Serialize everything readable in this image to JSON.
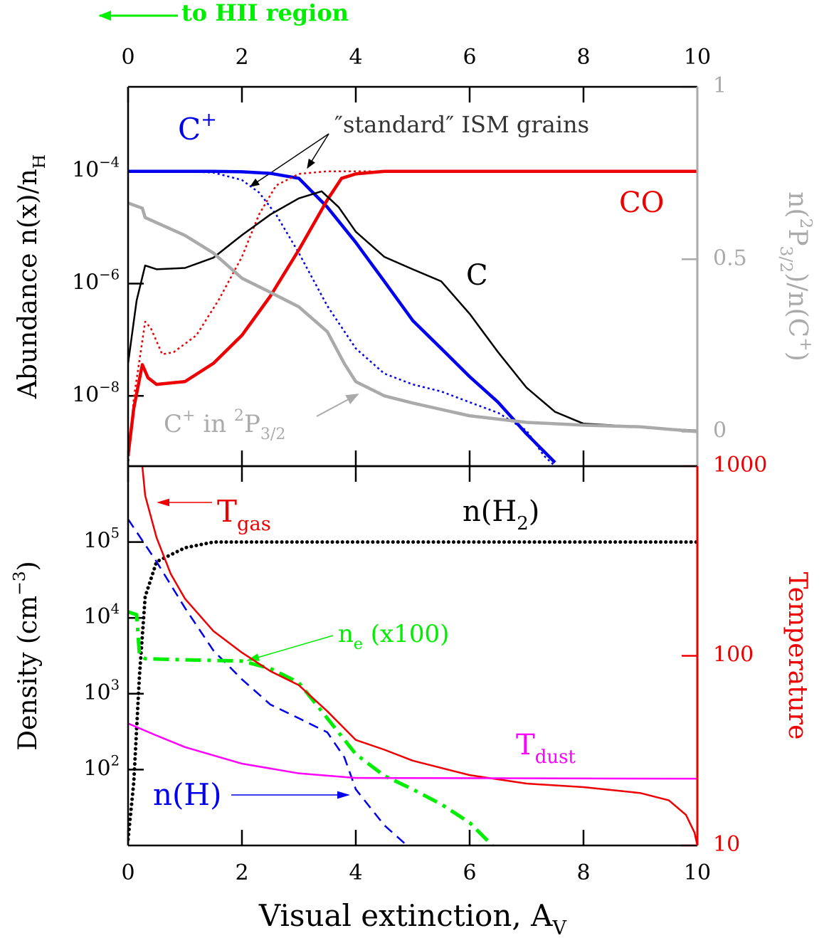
{
  "chart_data": [
    {
      "type": "line",
      "ylog": true,
      "xlim": [
        0,
        10
      ],
      "xticks": [
        0,
        2,
        4,
        6,
        8,
        10
      ],
      "ylim": [
        5.6e-10,
        0.0032
      ],
      "yticks": [
        {
          "value": 0.0001,
          "label": [
            {
              "text": "10"
            },
            {
              "text": "−4",
              "script": "sup"
            }
          ]
        },
        {
          "value": 1e-06,
          "label": [
            {
              "text": "10"
            },
            {
              "text": "−6",
              "script": "sup"
            }
          ]
        },
        {
          "value": 1e-08,
          "label": [
            {
              "text": "10"
            },
            {
              "text": "−8",
              "script": "sup"
            }
          ]
        }
      ],
      "y2lim": [
        -0.1,
        1
      ],
      "y2ticks": [
        0,
        0.5,
        1
      ],
      "y2color": "#aaaaaa",
      "ylabel": [
        {
          "text": "Abundance n(x)/n"
        },
        {
          "text": "H",
          "script": "sub"
        }
      ],
      "y2label": [
        {
          "text": "n("
        },
        {
          "text": "2",
          "script": "sup"
        },
        {
          "text": "P"
        },
        {
          "text": "3/2",
          "script": "sub"
        },
        {
          "text": ")/n(C"
        },
        {
          "text": "+",
          "script": "sup"
        },
        {
          "text": ")"
        }
      ],
      "series": [
        {
          "name": [
            {
              "text": "C"
            },
            {
              "text": "+",
              "script": "sup"
            }
          ],
          "color": "#0000ee",
          "style": "solid",
          "width": 4.5,
          "x": [
            0,
            0.5,
            1,
            1.5,
            2,
            2.5,
            3,
            3.5,
            4,
            4.5,
            5,
            5.5,
            6,
            6.5,
            7,
            7.5
          ],
          "values": [
            0.0001,
            0.0001,
            0.0001,
            0.0001,
            9.8e-05,
            9.2e-05,
            7.5e-05,
            2.3e-05,
            5.4e-06,
            1.1e-06,
            2.2e-07,
            7e-08,
            2.2e-08,
            7.7e-09,
            2.1e-09,
            6.5e-10
          ]
        },
        {
          "color": "#0000ee",
          "style": "dotted",
          "width": 2.5,
          "x": [
            0,
            0.5,
            1,
            1.5,
            2,
            2.3,
            2.6,
            3,
            3.5,
            4,
            4.5,
            5,
            5.5,
            6,
            6.5,
            7,
            7.3,
            7.5
          ],
          "values": [
            0.0001,
            0.0001,
            0.0001,
            9.5e-05,
            7e-05,
            4.2e-05,
            1.7e-05,
            3.5e-06,
            4e-07,
            7e-08,
            2.5e-08,
            1.6e-08,
            1.2e-08,
            7.7e-09,
            5e-09,
            2.4e-09,
            8.7e-10,
            5.6e-10
          ]
        },
        {
          "name": [
            {
              "text": "CO"
            }
          ],
          "color": "#ee0000",
          "style": "solid",
          "width": 4.5,
          "x": [
            0,
            0.1,
            0.25,
            0.35,
            0.5,
            1,
            1.5,
            2,
            2.5,
            3,
            3.5,
            3.75,
            4,
            4.5,
            10
          ],
          "values": [
            8.7e-10,
            6e-09,
            3.6e-08,
            2.1e-08,
            1.6e-08,
            1.8e-08,
            3.8e-08,
            1.2e-07,
            6e-07,
            4e-06,
            3.1e-05,
            7.5e-05,
            9e-05,
            0.0001,
            0.0001
          ]
        },
        {
          "color": "#ee0000",
          "style": "dotted",
          "width": 2.5,
          "x": [
            0,
            0.1,
            0.3,
            0.4,
            0.6,
            0.8,
            1.2,
            1.6,
            2,
            2.3,
            2.6,
            3,
            3.5,
            4.3
          ],
          "values": [
            5.6e-10,
            9e-09,
            2.1e-07,
            1.6e-07,
            5.5e-08,
            6e-08,
            1.2e-07,
            5.3e-07,
            3e-06,
            1.7e-05,
            5.6e-05,
            9e-05,
            0.0001,
            0.0001
          ]
        },
        {
          "name": [
            {
              "text": "C"
            }
          ],
          "color": "#000000",
          "style": "solid",
          "width": 2.5,
          "x": [
            0,
            0.15,
            0.3,
            0.5,
            1,
            1.5,
            2,
            2.5,
            3,
            3.4,
            3.7,
            4,
            4.5,
            5,
            5.5,
            6,
            6.5,
            7,
            7.5,
            8,
            9,
            10
          ],
          "values": [
            3.8e-08,
            5e-07,
            2.1e-06,
            1.8e-06,
            1.9e-06,
            2.9e-06,
            7.3e-06,
            1.7e-05,
            3.3e-05,
            4.4e-05,
            2.3e-05,
            8.4e-06,
            3e-06,
            1.8e-06,
            1.1e-06,
            2.9e-07,
            6e-08,
            1.4e-08,
            5.2e-09,
            3.2e-09,
            2.8e-09,
            2.4e-09
          ]
        },
        {
          "name": [
            {
              "text": "C"
            },
            {
              "text": "+",
              "script": "sup"
            },
            {
              "text": " in "
            },
            {
              "text": "2",
              "script": "sup"
            },
            {
              "text": "P"
            },
            {
              "text": "3/2",
              "script": "sub"
            }
          ],
          "color": "#aaaaaa",
          "style": "solid",
          "width": 4.5,
          "axis": "y2",
          "x": [
            0,
            0.25,
            0.3,
            1,
            1.5,
            2,
            2.5,
            3,
            3.5,
            3.8,
            4,
            4.5,
            5,
            6,
            7,
            8,
            9,
            10
          ],
          "values": [
            0.663,
            0.648,
            0.621,
            0.569,
            0.518,
            0.445,
            0.404,
            0.362,
            0.29,
            0.197,
            0.145,
            0.104,
            0.083,
            0.046,
            0.027,
            0.019,
            0.014,
            0
          ]
        }
      ],
      "annotations": [
        {
          "text": [
            {
              "text": "″standard″ ISM grains"
            }
          ],
          "color": "#333333"
        },
        {
          "text": [
            {
              "text": "to HII region"
            }
          ],
          "color": "#00ee00"
        }
      ]
    },
    {
      "type": "line",
      "ylog": true,
      "y2log": true,
      "xlim": [
        0,
        10
      ],
      "xticks": [
        0,
        2,
        4,
        6,
        8,
        10
      ],
      "ylim": [
        10,
        1000000
      ],
      "yticks": [
        {
          "value": 100,
          "label": [
            {
              "text": "10"
            },
            {
              "text": "2",
              "script": "sup"
            }
          ]
        },
        {
          "value": 1000,
          "label": [
            {
              "text": "10"
            },
            {
              "text": "3",
              "script": "sup"
            }
          ]
        },
        {
          "value": 10000,
          "label": [
            {
              "text": "10"
            },
            {
              "text": "4",
              "script": "sup"
            }
          ]
        },
        {
          "value": 100000,
          "label": [
            {
              "text": "10"
            },
            {
              "text": "5",
              "script": "sup"
            }
          ]
        }
      ],
      "y2lim": [
        10,
        1000
      ],
      "y2ticks": [
        10,
        100,
        1000
      ],
      "y2color": "#ee0000",
      "ylabel": [
        {
          "text": "Density (cm"
        },
        {
          "text": "−3",
          "script": "sup"
        },
        {
          "text": ")"
        }
      ],
      "y2label": [
        {
          "text": "Temperature"
        }
      ],
      "xlabel": [
        {
          "text": "Visual extinction, A"
        },
        {
          "text": "V",
          "script": "sub"
        }
      ],
      "series": [
        {
          "name": [
            {
              "text": "n(H"
            },
            {
              "text": "2",
              "script": "sub"
            },
            {
              "text": ")"
            }
          ],
          "color": "#000000",
          "style": "dots",
          "width": 5,
          "x": [
            0,
            0.1,
            0.2,
            0.3,
            0.5,
            1,
            1.5,
            10
          ],
          "values": [
            12,
            68,
            1740,
            19000,
            55000,
            84000,
            100000,
            100000
          ]
        },
        {
          "name": [
            {
              "text": "n(H)"
            }
          ],
          "color": "#0000ee",
          "style": "dashed",
          "width": 2.5,
          "x": [
            0,
            0.5,
            1,
            1.5,
            2,
            2.5,
            3,
            3.5,
            3.8,
            4,
            4.5,
            4.9
          ],
          "values": [
            200000,
            55000,
            13500,
            3700,
            1550,
            720,
            475,
            310,
            145,
            55,
            18.5,
            10
          ]
        },
        {
          "name": [
            {
              "text": "n"
            },
            {
              "text": "e",
              "script": "sub"
            },
            {
              "text": " (x100)"
            }
          ],
          "color": "#00ee00",
          "style": "dashdot",
          "width": 5,
          "x": [
            0,
            0.15,
            0.2,
            0.3,
            1,
            2,
            2.5,
            3,
            3.5,
            4,
            4.5,
            5,
            5.5,
            6,
            6.4
          ],
          "values": [
            12000,
            11000,
            3300,
            2900,
            2800,
            2700,
            2150,
            1400,
            475,
            160,
            83,
            55,
            35,
            20,
            10
          ]
        },
        {
          "name": [
            {
              "text": "T"
            },
            {
              "text": "gas",
              "script": "sub"
            }
          ],
          "color": "#ee0000",
          "style": "solid",
          "width": 2.5,
          "axis": "y2",
          "x": [
            0.25,
            0.3,
            0.5,
            0.75,
            1,
            1.5,
            2,
            2.5,
            3,
            3.5,
            4,
            4.5,
            5,
            6,
            7,
            8,
            9,
            9.5,
            9.8,
            9.95,
            10
          ],
          "values": [
            1000,
            700,
            420,
            270,
            200,
            135,
            104,
            83,
            70,
            51,
            36,
            32,
            28,
            23.5,
            21.2,
            20.3,
            18.9,
            17.3,
            14.5,
            11.7,
            10
          ]
        },
        {
          "name": [
            {
              "text": "T"
            },
            {
              "text": "dust",
              "script": "sub"
            }
          ],
          "color": "#ff00ff",
          "style": "solid",
          "width": 2.5,
          "axis": "y2",
          "x": [
            0,
            0.5,
            1,
            2,
            3,
            4,
            10
          ],
          "values": [
            44,
            38,
            33,
            27,
            24,
            22.7,
            22.5
          ]
        }
      ],
      "annotations": []
    }
  ]
}
